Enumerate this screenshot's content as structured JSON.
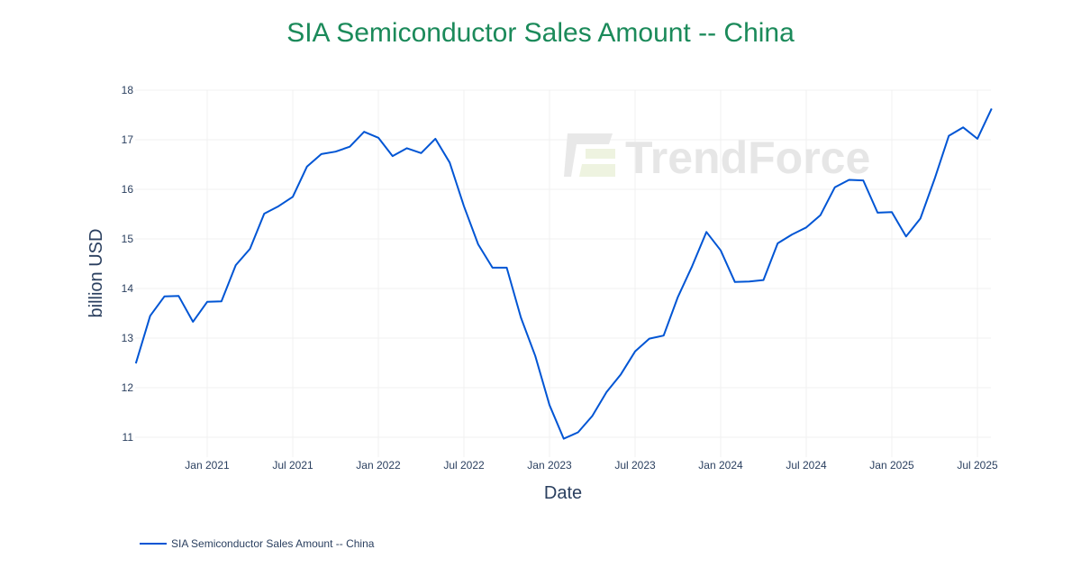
{
  "title": "SIA Semiconductor Sales Amount -- China",
  "watermark": "TrendForce",
  "colors": {
    "title": "#1b8a5a",
    "line": "#0055d4",
    "axis_text": "#2a3f5f",
    "grid": "#f0f0f0",
    "watermark": "#e6e6e6"
  },
  "legend": {
    "label": "SIA Semiconductor Sales Amount -- China"
  },
  "chart_data": {
    "type": "line",
    "title": "SIA Semiconductor Sales Amount -- China",
    "xlabel": "Date",
    "ylabel": "billion USD",
    "ylim": [
      10.6,
      18
    ],
    "yticks": [
      11,
      12,
      13,
      14,
      15,
      16,
      17,
      18
    ],
    "xticks": [
      "Jan 2021",
      "Jul 2021",
      "Jan 2022",
      "Jul 2022",
      "Jan 2023",
      "Jul 2023",
      "Jan 2024",
      "Jul 2024",
      "Jan 2025",
      "Jul 2025"
    ],
    "grid": true,
    "legend_position": "bottom-left",
    "x": [
      "2020-08",
      "2020-09",
      "2020-10",
      "2020-11",
      "2020-12",
      "2021-01",
      "2021-02",
      "2021-03",
      "2021-04",
      "2021-05",
      "2021-06",
      "2021-07",
      "2021-08",
      "2021-09",
      "2021-10",
      "2021-11",
      "2021-12",
      "2022-01",
      "2022-02",
      "2022-03",
      "2022-04",
      "2022-05",
      "2022-06",
      "2022-07",
      "2022-08",
      "2022-09",
      "2022-10",
      "2022-11",
      "2022-12",
      "2023-01",
      "2023-02",
      "2023-03",
      "2023-04",
      "2023-05",
      "2023-06",
      "2023-07",
      "2023-08",
      "2023-09",
      "2023-10",
      "2023-11",
      "2023-12",
      "2024-01",
      "2024-02",
      "2024-03",
      "2024-04",
      "2024-05",
      "2024-06",
      "2024-07",
      "2024-08",
      "2024-09",
      "2024-10",
      "2024-11",
      "2024-12",
      "2025-01",
      "2025-02",
      "2025-03",
      "2025-04",
      "2025-05",
      "2025-06",
      "2025-07",
      "2025-08"
    ],
    "series": [
      {
        "name": "SIA Semiconductor Sales Amount -- China",
        "values": [
          12.49,
          13.45,
          13.84,
          13.85,
          13.33,
          13.73,
          13.74,
          14.47,
          14.8,
          15.51,
          15.66,
          15.85,
          16.46,
          16.71,
          16.76,
          16.86,
          17.16,
          17.04,
          16.67,
          16.83,
          16.73,
          17.02,
          16.54,
          15.66,
          14.89,
          14.42,
          14.42,
          13.41,
          12.64,
          11.65,
          10.97,
          11.1,
          11.43,
          11.91,
          12.27,
          12.73,
          12.99,
          13.05,
          13.83,
          14.45,
          15.14,
          14.77,
          14.13,
          14.14,
          14.17,
          14.91,
          15.09,
          15.23,
          15.48,
          16.04,
          16.19,
          16.18,
          15.53,
          15.54,
          15.05,
          15.41,
          16.21,
          17.08,
          17.25,
          17.02,
          17.63
        ]
      }
    ]
  }
}
